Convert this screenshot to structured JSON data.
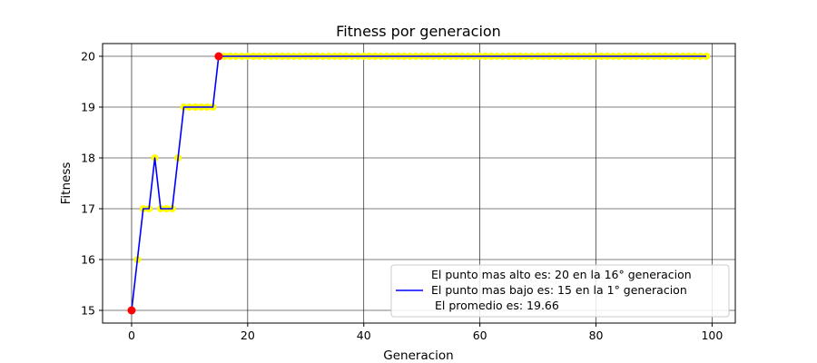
{
  "chart_data": {
    "type": "line",
    "title": "Fitness por generacion",
    "xlabel": "Generacion",
    "ylabel": "Fitness",
    "xlim": [
      -5,
      104
    ],
    "ylim": [
      14.75,
      20.25
    ],
    "xticks": [
      "0",
      "20",
      "40",
      "60",
      "80",
      "100"
    ],
    "yticks": [
      "15",
      "16",
      "17",
      "18",
      "19",
      "20"
    ],
    "grid": true,
    "legend_position": "lower-right",
    "series": [
      {
        "name": "El punto mas bajo es: 15 en la 1° generacion",
        "color": "#0000ff",
        "marker_color": "#ffff00",
        "x": [
          0,
          1,
          2,
          3,
          4,
          5,
          6,
          7,
          8,
          9,
          10,
          11,
          12,
          13,
          14,
          15,
          16,
          17,
          18,
          19,
          20,
          21,
          22,
          23,
          24,
          25,
          26,
          27,
          28,
          29,
          30,
          31,
          32,
          33,
          34,
          35,
          36,
          37,
          38,
          39,
          40,
          41,
          42,
          43,
          44,
          45,
          46,
          47,
          48,
          49,
          50,
          51,
          52,
          53,
          54,
          55,
          56,
          57,
          58,
          59,
          60,
          61,
          62,
          63,
          64,
          65,
          66,
          67,
          68,
          69,
          70,
          71,
          72,
          73,
          74,
          75,
          76,
          77,
          78,
          79,
          80,
          81,
          82,
          83,
          84,
          85,
          86,
          87,
          88,
          89,
          90,
          91,
          92,
          93,
          94,
          95,
          96,
          97,
          98,
          99
        ],
        "y": [
          15,
          16,
          17,
          17,
          18,
          17,
          17,
          17,
          18,
          19,
          19,
          19,
          19,
          19,
          19,
          20,
          20,
          20,
          20,
          20,
          20,
          20,
          20,
          20,
          20,
          20,
          20,
          20,
          20,
          20,
          20,
          20,
          20,
          20,
          20,
          20,
          20,
          20,
          20,
          20,
          20,
          20,
          20,
          20,
          20,
          20,
          20,
          20,
          20,
          20,
          20,
          20,
          20,
          20,
          20,
          20,
          20,
          20,
          20,
          20,
          20,
          20,
          20,
          20,
          20,
          20,
          20,
          20,
          20,
          20,
          20,
          20,
          20,
          20,
          20,
          20,
          20,
          20,
          20,
          20,
          20,
          20,
          20,
          20,
          20,
          20,
          20,
          20,
          20,
          20,
          20,
          20,
          20,
          20,
          20,
          20,
          20,
          20,
          20,
          20
        ]
      }
    ],
    "highlights": [
      {
        "label": "max",
        "x": 15,
        "y": 20,
        "color": "#ff0000"
      },
      {
        "label": "min",
        "x": 0,
        "y": 15,
        "color": "#ff0000"
      }
    ],
    "legend_entries": [
      "El punto mas alto es: 20 en la 16° generacion",
      "El punto mas bajo es: 15 en la 1° generacion",
      " El promedio es: 19.66"
    ]
  }
}
